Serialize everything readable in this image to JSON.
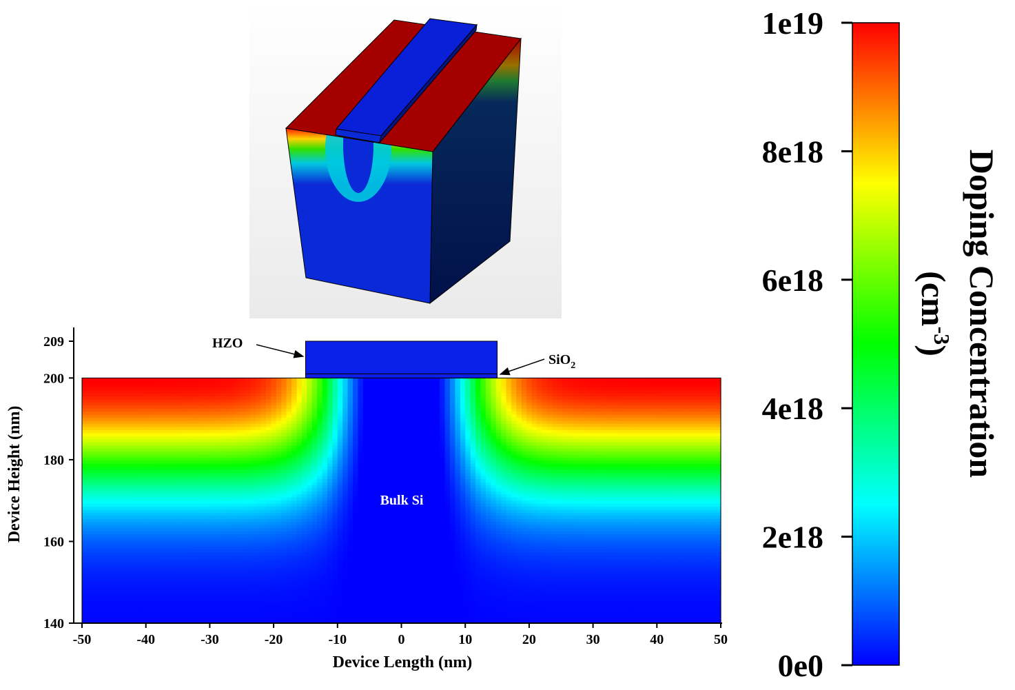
{
  "chart_data": [
    {
      "type": "heatmap",
      "view": "3d-device-render",
      "structure": [
        "source",
        "gate",
        "drain",
        "bulk"
      ]
    },
    {
      "type": "heatmap",
      "view": "2d-cross-section",
      "title": "",
      "xlabel": "Device Length (nm)",
      "ylabel": "Device Height (nm)",
      "xlim": [
        -50,
        50
      ],
      "ylim": [
        140,
        209
      ],
      "xticks": [
        -50,
        -40,
        -30,
        -20,
        -10,
        0,
        10,
        20,
        30,
        40,
        50
      ],
      "yticks": [
        140,
        160,
        180,
        200,
        209
      ],
      "regions": {
        "bulk": {
          "label": "Bulk Si",
          "x": [
            -50,
            50
          ],
          "y": [
            140,
            200
          ]
        },
        "sio2": {
          "label": "SiO",
          "label_sub": "2",
          "x": [
            -15,
            15
          ],
          "y": [
            200,
            201
          ]
        },
        "hzo": {
          "label": "HZO",
          "x": [
            -15,
            15
          ],
          "y": [
            201,
            209
          ]
        }
      },
      "doping_profile": {
        "peak": 1e+19,
        "surface_y": 200,
        "depth_scale_nm": 26,
        "lateral_edge_nm": 12,
        "lateral_scale_nm": 3.2
      }
    },
    {
      "type": "colorbar",
      "title": "Doping Concentration",
      "unit": "(cm",
      "unit_sup": "-3",
      "unit_close": ")",
      "min": 0,
      "max": 1e+19,
      "tick_values": [
        0,
        2e+18,
        4e+18,
        6e+18,
        8e+18,
        1e+19
      ],
      "tick_labels": [
        "0e0",
        "2e18",
        "4e18",
        "6e18",
        "8e18",
        "1e19"
      ],
      "colormap": [
        "#0000ff",
        "#00ffff",
        "#00ff00",
        "#ffff00",
        "#ff0000"
      ]
    }
  ],
  "colors": {
    "source_drain_face": "#a50000",
    "gate": "#0a1fd8",
    "bulk_front": "#0a2ad8",
    "bulk_side": "#02104a"
  }
}
